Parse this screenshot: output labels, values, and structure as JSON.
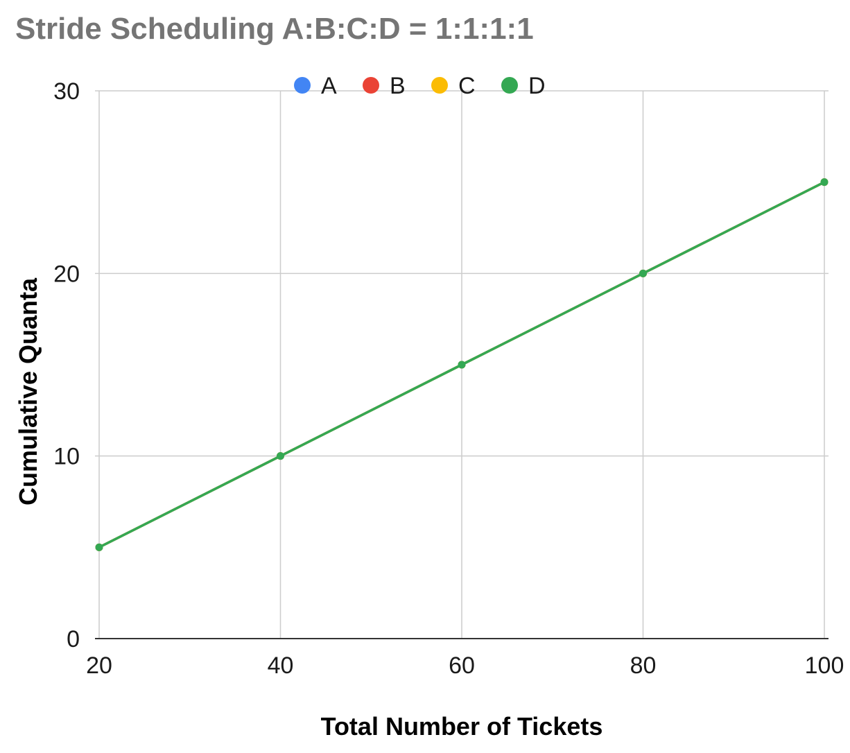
{
  "chart_data": {
    "type": "line",
    "title": "Stride Scheduling A:B:C:D = 1:1:1:1",
    "xlabel": "Total Number of Tickets",
    "ylabel": "Cumulative Quanta",
    "x": [
      20,
      40,
      60,
      80,
      100
    ],
    "x_ticks": [
      "20",
      "40",
      "60",
      "80",
      "100"
    ],
    "y_ticks": [
      "0",
      "10",
      "20",
      "30"
    ],
    "xlim": [
      20,
      100
    ],
    "ylim": [
      0,
      30
    ],
    "grid": true,
    "legend_position": "top",
    "series": [
      {
        "name": "A",
        "color": "#4285F4",
        "values": [
          5,
          10,
          15,
          20,
          25
        ]
      },
      {
        "name": "B",
        "color": "#EA4335",
        "values": [
          5,
          10,
          15,
          20,
          25
        ]
      },
      {
        "name": "C",
        "color": "#FBBC04",
        "values": [
          5,
          10,
          15,
          20,
          25
        ]
      },
      {
        "name": "D",
        "color": "#34A853",
        "values": [
          5,
          10,
          15,
          20,
          25
        ]
      }
    ]
  }
}
